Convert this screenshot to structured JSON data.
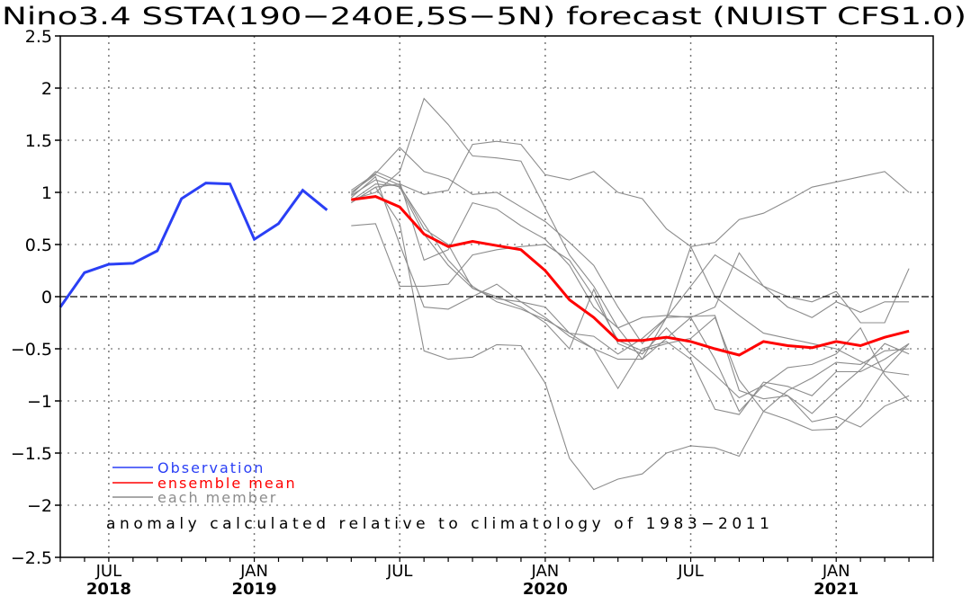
{
  "chart_data": {
    "type": "line",
    "title": "Nino3.4 SSTA(190−240E,5S−5N) forecast (NUIST CFS1.0)",
    "xlabel": "",
    "ylabel": "",
    "ylim": [
      -2.5,
      2.5
    ],
    "yticks": [
      2.5,
      2,
      1.5,
      1,
      0.5,
      0,
      -0.5,
      -1,
      -1.5,
      -2,
      -2.5
    ],
    "ytick_labels": [
      "2.5",
      "2",
      "1.5",
      "1",
      "0.5",
      "0",
      "−0.5",
      "−1",
      "−1.5",
      "−2",
      "−2.5"
    ],
    "x_range": [
      "2018-05",
      "2021-05"
    ],
    "xticks": [
      {
        "month": "JUL",
        "year": "2018",
        "index": 2
      },
      {
        "month": "JAN",
        "year": "2019",
        "index": 8
      },
      {
        "month": "JUL",
        "year": "",
        "index": 14
      },
      {
        "month": "JAN",
        "year": "2020",
        "index": 20
      },
      {
        "month": "JUL",
        "year": "",
        "index": 26
      },
      {
        "month": "JAN",
        "year": "2021",
        "index": 32
      }
    ],
    "grid": true,
    "legend_position": "bottom-left",
    "annotation": "anomaly calculated relative to climatology of 1983−2011",
    "colors": {
      "observation": "#2a3ff5",
      "mean": "#ff0000",
      "member": "#8c8c8c"
    },
    "observation": {
      "name": "Observation",
      "start_index": 0,
      "values": [
        -0.1,
        0.23,
        0.31,
        0.32,
        0.44,
        0.94,
        1.09,
        1.08,
        0.55,
        0.7,
        1.02,
        0.83
      ]
    },
    "ensemble_mean": {
      "name": "ensemble mean",
      "start_index": 12,
      "values": [
        0.93,
        0.96,
        0.86,
        0.6,
        0.48,
        0.53,
        0.49,
        0.45,
        0.25,
        -0.03,
        -0.2,
        -0.42,
        -0.42,
        -0.39,
        -0.43,
        -0.5,
        -0.56,
        -0.43,
        -0.47,
        -0.49,
        -0.43,
        -0.47,
        -0.39,
        -0.33
      ]
    },
    "members": {
      "name": "each member",
      "start_index": 12,
      "series": [
        [
          1.02,
          1.18,
          1.43,
          1.2,
          1.13,
          0.98,
          1.0,
          0.86,
          0.72,
          0.52,
          0.3,
          -0.1,
          -0.45,
          -0.2,
          0.48,
          0.52,
          0.74,
          0.8,
          0.92,
          1.05,
          1.1,
          1.15,
          1.2,
          1.0
        ],
        [
          0.93,
          1.0,
          1.2,
          1.9,
          1.65,
          1.35,
          1.33,
          1.3,
          0.85,
          0.4,
          0.1,
          -0.3,
          -0.6,
          -0.4,
          -0.2,
          -0.1,
          0.42,
          0.1,
          -0.1,
          -0.2,
          -0.05,
          -0.15,
          -0.05,
          -0.05
        ],
        [
          0.9,
          1.05,
          1.08,
          0.98,
          1.02,
          1.46,
          1.49,
          1.46,
          1.17,
          1.12,
          1.2,
          1.0,
          0.94,
          0.65,
          0.48,
          0.0,
          -0.18,
          -0.35,
          -0.4,
          -0.45,
          -0.5,
          -0.62,
          -0.72,
          -0.75
        ],
        [
          0.98,
          1.2,
          1.1,
          0.35,
          0.45,
          0.9,
          0.84,
          0.68,
          0.55,
          0.3,
          -0.1,
          -0.3,
          -0.2,
          -0.18,
          -0.2,
          -0.6,
          -1.1,
          -0.85,
          -0.95,
          -1.2,
          -1.15,
          -1.25,
          -1.05,
          -0.95
        ],
        [
          0.68,
          0.7,
          0.1,
          0.1,
          0.12,
          0.4,
          0.45,
          0.48,
          0.5,
          0.35,
          0.0,
          -0.42,
          -0.52,
          -0.45,
          -0.4,
          -0.2,
          -0.8,
          -1.1,
          -1.18,
          -1.28,
          -1.27,
          -1.05,
          -0.7,
          -0.45
        ],
        [
          0.95,
          1.15,
          0.5,
          -0.1,
          -0.12,
          0.0,
          0.12,
          -0.05,
          -0.1,
          -0.35,
          -0.38,
          -0.55,
          -0.4,
          -0.2,
          0.1,
          0.4,
          0.25,
          0.1,
          0.0,
          -0.05,
          0.05,
          -0.25,
          -0.25,
          0.27
        ],
        [
          0.9,
          1.05,
          0.7,
          -0.52,
          -0.6,
          -0.58,
          -0.46,
          -0.47,
          -0.83,
          -1.55,
          -1.85,
          -1.75,
          -1.7,
          -1.5,
          -1.43,
          -1.45,
          -1.53,
          -1.1,
          -0.9,
          -0.78,
          -0.63,
          -0.65,
          -0.52,
          -0.5
        ],
        [
          0.97,
          1.12,
          1.05,
          0.6,
          0.3,
          0.08,
          -0.02,
          -0.05,
          -0.2,
          -0.38,
          -0.5,
          -0.88,
          -0.5,
          -0.43,
          -0.6,
          -1.08,
          -1.13,
          -0.82,
          -0.86,
          -0.95,
          -0.72,
          -0.72,
          -0.6,
          -0.45
        ],
        [
          0.92,
          1.08,
          1.06,
          0.7,
          0.35,
          0.1,
          -0.05,
          -0.12,
          -0.22,
          -0.35,
          -0.5,
          -0.6,
          -0.6,
          -0.2,
          -0.19,
          -0.18,
          -0.9,
          -0.98,
          -0.95,
          -1.12,
          -0.9,
          -0.7,
          -0.45,
          -0.55
        ],
        [
          1.0,
          1.17,
          1.07,
          0.65,
          0.5,
          0.08,
          0.0,
          -0.1,
          -0.25,
          -0.5,
          0.07,
          -0.45,
          -0.55,
          -0.3,
          -0.55,
          -0.75,
          -0.97,
          -0.85,
          -0.68,
          -0.65,
          -0.55,
          -0.3,
          -0.75,
          -1.0
        ]
      ]
    }
  }
}
